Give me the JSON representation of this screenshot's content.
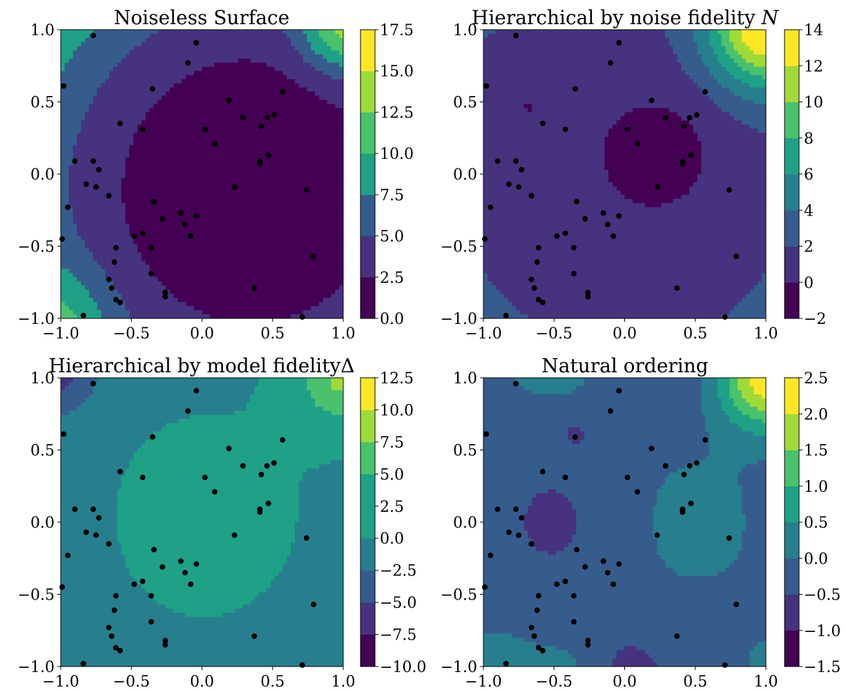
{
  "figure": {
    "points": [
      [
        -0.77,
        0.96
      ],
      [
        -0.04,
        0.91
      ],
      [
        -0.1,
        0.77
      ],
      [
        -0.98,
        0.61
      ],
      [
        -0.35,
        0.59
      ],
      [
        0.57,
        0.57
      ],
      [
        0.19,
        0.51
      ],
      [
        0.29,
        0.39
      ],
      [
        0.46,
        0.39
      ],
      [
        0.51,
        0.41
      ],
      [
        0.42,
        0.33
      ],
      [
        0.02,
        0.31
      ],
      [
        -0.58,
        0.35
      ],
      [
        -0.42,
        0.31
      ],
      [
        0.09,
        0.21
      ],
      [
        -0.9,
        0.09
      ],
      [
        -0.77,
        0.09
      ],
      [
        -0.73,
        0.03
      ],
      [
        0.41,
        0.09
      ],
      [
        0.41,
        0.07
      ],
      [
        0.47,
        0.13
      ],
      [
        -0.82,
        -0.07
      ],
      [
        -0.75,
        -0.09
      ],
      [
        0.23,
        -0.09
      ],
      [
        0.74,
        -0.11
      ],
      [
        -0.66,
        -0.15
      ],
      [
        -0.34,
        -0.19
      ],
      [
        -0.95,
        -0.23
      ],
      [
        -0.15,
        -0.27
      ],
      [
        -0.04,
        -0.29
      ],
      [
        -0.28,
        -0.31
      ],
      [
        -0.12,
        -0.35
      ],
      [
        -0.42,
        -0.41
      ],
      [
        -0.48,
        -0.43
      ],
      [
        -0.08,
        -0.43
      ],
      [
        -0.99,
        -0.45
      ],
      [
        -0.61,
        -0.51
      ],
      [
        -0.36,
        -0.51
      ],
      [
        -0.62,
        -0.61
      ],
      [
        0.79,
        -0.57
      ],
      [
        -0.36,
        -0.69
      ],
      [
        -0.66,
        -0.73
      ],
      [
        -0.64,
        -0.79
      ],
      [
        0.37,
        -0.79
      ],
      [
        -0.26,
        -0.82
      ],
      [
        -0.26,
        -0.85
      ],
      [
        -0.61,
        -0.87
      ],
      [
        -0.58,
        -0.89
      ],
      [
        -0.84,
        -0.98
      ],
      [
        0.71,
        -0.99
      ]
    ]
  },
  "chart_data": [
    {
      "type": "contour",
      "title": "Noiseless Surface",
      "xlabel": "",
      "ylabel": "",
      "xlim": [
        -1.0,
        1.0
      ],
      "ylim": [
        -1.0,
        1.0
      ],
      "xticks": [
        "−1.0",
        "−0.5",
        "0.0",
        "0.5",
        "1.0"
      ],
      "yticks": [
        "−1.0",
        "−0.5",
        "0.0",
        "0.5",
        "1.0"
      ],
      "colorbar": {
        "min": 0.0,
        "max": 17.5,
        "ticks": [
          "0.0",
          "2.5",
          "5.0",
          "7.5",
          "10.0",
          "12.5",
          "15.0",
          "17.5"
        ]
      },
      "field": "quadratic_bowl",
      "scatter": "figure.points"
    },
    {
      "type": "contour",
      "title": "Hierarchical by noise fidelity N",
      "title_main": "Hierarchical by noise fidelity ",
      "title_symbol": "N",
      "xlabel": "",
      "ylabel": "",
      "xlim": [
        -1.0,
        1.0
      ],
      "ylim": [
        -1.0,
        1.0
      ],
      "xticks": [
        "−1.0",
        "−0.5",
        "0.0",
        "0.5",
        "1.0"
      ],
      "yticks": [
        "−1.0",
        "−0.5",
        "0.0",
        "0.5",
        "1.0"
      ],
      "colorbar": {
        "min": -2,
        "max": 14,
        "ticks": [
          "−2",
          "0",
          "2",
          "4",
          "6",
          "8",
          "10",
          "12",
          "14"
        ]
      },
      "field": "noise_fidelity",
      "scatter": "figure.points"
    },
    {
      "type": "contour",
      "title": "Hierarchical by model fidelityΔ",
      "xlabel": "",
      "ylabel": "",
      "xlim": [
        -1.0,
        1.0
      ],
      "ylim": [
        -1.0,
        1.0
      ],
      "xticks": [
        "−1.0",
        "−0.5",
        "0.0",
        "0.5",
        "1.0"
      ],
      "yticks": [
        "−1.0",
        "−0.5",
        "0.0",
        "0.5",
        "1.0"
      ],
      "colorbar": {
        "min": -10.0,
        "max": 12.5,
        "ticks": [
          "−10.0",
          "−7.5",
          "−5.0",
          "−2.5",
          "0.0",
          "2.5",
          "5.0",
          "7.5",
          "10.0",
          "12.5"
        ]
      },
      "field": "model_fidelity",
      "scatter": "figure.points"
    },
    {
      "type": "contour",
      "title": "Natural ordering",
      "xlabel": "",
      "ylabel": "",
      "xlim": [
        -1.0,
        1.0
      ],
      "ylim": [
        -1.0,
        1.0
      ],
      "xticks": [
        "−1.0",
        "−0.5",
        "0.0",
        "0.5",
        "1.0"
      ],
      "yticks": [
        "−1.0",
        "−0.5",
        "0.0",
        "0.5",
        "1.0"
      ],
      "colorbar": {
        "min": -1.5,
        "max": 2.5,
        "ticks": [
          "−1.5",
          "−1.0",
          "−0.5",
          "0.0",
          "0.5",
          "1.0",
          "1.5",
          "2.0",
          "2.5"
        ]
      },
      "field": "natural",
      "scatter": "figure.points"
    }
  ],
  "palette": [
    "#440154",
    "#46327e",
    "#365c8d",
    "#277f8e",
    "#1fa187",
    "#4ac16d",
    "#a0da39",
    "#fde725"
  ]
}
